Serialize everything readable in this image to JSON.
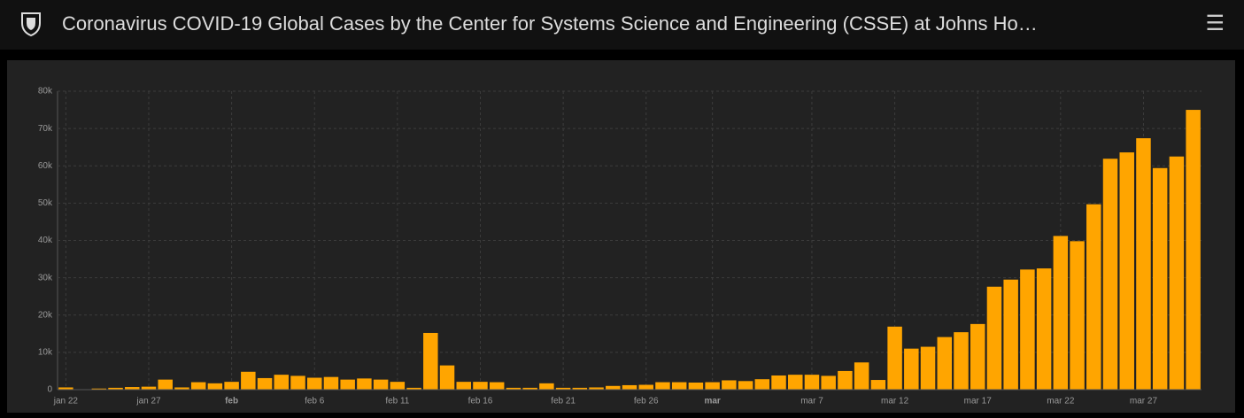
{
  "header": {
    "title": "Coronavirus COVID-19 Global Cases by the Center for Systems Science and Engineering (CSSE) at Johns Ho…"
  },
  "chart_data": {
    "type": "bar",
    "color": "#ffa500",
    "grid": true,
    "categories": [
      "jan 22",
      null,
      null,
      null,
      null,
      "jan 27",
      null,
      null,
      null,
      null,
      "feb",
      null,
      null,
      null,
      null,
      "feb 6",
      null,
      null,
      null,
      null,
      "feb 11",
      null,
      null,
      null,
      null,
      "feb 16",
      null,
      null,
      null,
      null,
      "feb 21",
      null,
      null,
      null,
      null,
      "feb 26",
      null,
      null,
      null,
      "mar",
      null,
      null,
      null,
      null,
      null,
      "mar 7",
      null,
      null,
      null,
      null,
      "mar 12",
      null,
      null,
      null,
      null,
      "mar 17",
      null,
      null,
      null,
      null,
      "mar 22",
      null,
      null,
      null,
      null,
      "mar 27",
      null,
      null,
      null
    ],
    "values": [
      600,
      100,
      300,
      500,
      700,
      800,
      2700,
      600,
      2000,
      1700,
      2100,
      4800,
      3100,
      4000,
      3700,
      3200,
      3400,
      2700,
      3000,
      2700,
      2100,
      500,
      15200,
      6500,
      2100,
      2100,
      2000,
      500,
      500,
      1700,
      500,
      500,
      600,
      1000,
      1200,
      1300,
      2000,
      2000,
      1900,
      2000,
      2500,
      2300,
      2800,
      3800,
      4000,
      4000,
      3700,
      5000,
      7300,
      2600,
      16900,
      11000,
      11500,
      14100,
      15400,
      17600,
      27600,
      29500,
      32200,
      32500,
      41200,
      39800,
      49700,
      61900,
      63600,
      67400,
      59400,
      62500,
      75000
    ],
    "ylim": [
      0,
      80000
    ],
    "yticks": [
      0,
      {
        "value": 10000,
        "label": "10k"
      },
      {
        "value": 20000,
        "label": "20k"
      },
      {
        "value": 30000,
        "label": "30k"
      },
      {
        "value": 40000,
        "label": "40k"
      },
      {
        "value": 50000,
        "label": "50k"
      },
      {
        "value": 60000,
        "label": "60k"
      },
      {
        "value": 70000,
        "label": "70k"
      },
      {
        "value": 80000,
        "label": "80k"
      }
    ]
  }
}
